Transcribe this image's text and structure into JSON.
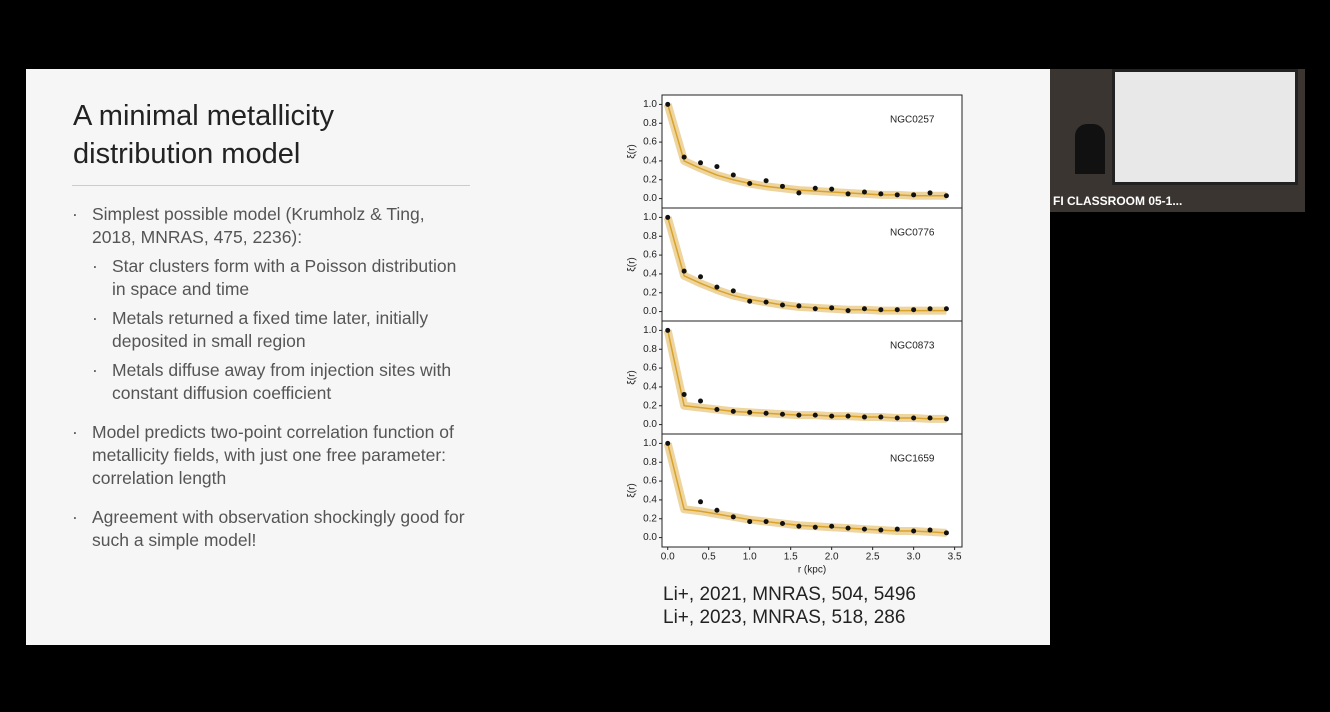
{
  "slide": {
    "title": "A minimal metallicity distribution model",
    "bullets": [
      {
        "text": "Simplest possible model (Krumholz & Ting, 2018, MNRAS, 475, 2236):",
        "sub": [
          "Star clusters form with a Poisson distribution in space and time",
          "Metals returned a fixed time later, initially deposited in small region",
          "Metals diffuse away from injection sites with constant diffusion coefficient"
        ]
      },
      {
        "text": "Model predicts two-point correlation function of metallicity fields, with just one free parameter: correlation length",
        "sub": []
      },
      {
        "text": "Agreement with observation shockingly good for such a simple model!",
        "sub": []
      }
    ],
    "references": [
      "Li+, 2021, MNRAS, 504, 5496",
      "Li+, 2023, MNRAS, 518, 286"
    ]
  },
  "chart_data": {
    "type": "scatter",
    "xlabel": "r (kpc)",
    "ylabel": "ξ(r)",
    "xlim": [
      -0.07,
      3.59
    ],
    "ylim": [
      -0.1,
      1.1
    ],
    "xticks": [
      {
        "value": 0,
        "label": "0.0"
      },
      0.5,
      {
        "value": 1,
        "label": "1.0"
      },
      1.5,
      {
        "value": 2,
        "label": "2.0"
      },
      2.5,
      {
        "value": 3,
        "label": "3.0"
      },
      3.5
    ],
    "yticks": [
      {
        "value": 0,
        "label": "0.0"
      },
      0.2,
      0.4,
      0.6,
      0.8,
      {
        "value": 1,
        "label": "1.0"
      }
    ],
    "point_color": "#111111",
    "model_color": "#d9a22a",
    "x": [
      0,
      0.2,
      0.4,
      0.6,
      0.8,
      1,
      1.2,
      1.4,
      1.6,
      1.8,
      2,
      2.2,
      2.4,
      2.6,
      2.8,
      3,
      3.2,
      3.4
    ],
    "panels": [
      {
        "label": "NGC0257",
        "values": [
          1.0,
          0.44,
          0.38,
          0.34,
          0.25,
          0.16,
          0.19,
          0.13,
          0.06,
          0.11,
          0.1,
          0.05,
          0.07,
          0.05,
          0.04,
          0.04,
          0.06,
          0.03
        ],
        "model": [
          1.0,
          0.4,
          0.32,
          0.25,
          0.2,
          0.16,
          0.13,
          0.11,
          0.09,
          0.08,
          0.07,
          0.06,
          0.05,
          0.04,
          0.04,
          0.03,
          0.03,
          0.03
        ]
      },
      {
        "label": "NGC0776",
        "values": [
          1.0,
          0.43,
          0.37,
          0.26,
          0.22,
          0.11,
          0.1,
          0.07,
          0.06,
          0.03,
          0.04,
          0.01,
          0.03,
          0.02,
          0.02,
          0.02,
          0.03,
          0.03
        ],
        "model": [
          1.0,
          0.38,
          0.3,
          0.23,
          0.17,
          0.13,
          0.1,
          0.07,
          0.05,
          0.04,
          0.03,
          0.02,
          0.02,
          0.01,
          0.01,
          0.01,
          0.01,
          0.01
        ]
      },
      {
        "label": "NGC0873",
        "values": [
          1.0,
          0.32,
          0.25,
          0.16,
          0.14,
          0.13,
          0.12,
          0.11,
          0.1,
          0.1,
          0.09,
          0.09,
          0.08,
          0.08,
          0.07,
          0.07,
          0.07,
          0.06
        ],
        "model": [
          1.0,
          0.2,
          0.18,
          0.16,
          0.14,
          0.13,
          0.12,
          0.11,
          0.1,
          0.1,
          0.09,
          0.09,
          0.08,
          0.08,
          0.07,
          0.07,
          0.06,
          0.06
        ]
      },
      {
        "label": "NGC1659",
        "values": [
          1.0,
          null,
          0.38,
          0.29,
          0.22,
          0.17,
          0.17,
          0.15,
          0.12,
          0.11,
          0.12,
          0.1,
          0.09,
          0.08,
          0.09,
          0.07,
          0.08,
          0.05
        ],
        "model": [
          1.0,
          0.3,
          0.28,
          0.25,
          0.22,
          0.19,
          0.17,
          0.15,
          0.13,
          0.12,
          0.11,
          0.1,
          0.09,
          0.08,
          0.07,
          0.07,
          0.06,
          0.05
        ]
      }
    ]
  },
  "webcam": {
    "label": "FI CLASSROOM 05-1..."
  }
}
